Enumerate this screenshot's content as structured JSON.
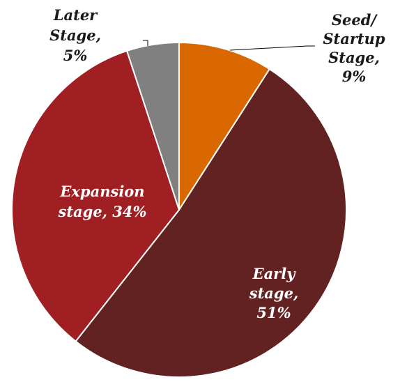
{
  "chart_data": {
    "type": "pie",
    "slices": [
      {
        "label": "Seed/ Startup Stage",
        "value": 9,
        "value_label": "9%",
        "color": "#D96800",
        "label_lines": [
          "Seed/",
          "Startup",
          "Stage,",
          "9%"
        ]
      },
      {
        "label": "Early stage",
        "value": 51,
        "value_label": "51%",
        "color": "#622222",
        "label_lines": [
          "Early",
          "stage,",
          "51%"
        ]
      },
      {
        "label": "Expansion stage",
        "value": 34,
        "value_label": "34%",
        "color": "#A01F23",
        "label_lines": [
          "Expansion",
          "stage, 34%"
        ]
      },
      {
        "label": "Later Stage",
        "value": 5,
        "value_label": "5%",
        "color": "#808080",
        "label_lines": [
          "Later",
          "Stage,",
          "5%"
        ]
      }
    ],
    "start_angle": "12 o'clock",
    "direction": "clockwise",
    "legend": "none",
    "data_labels": "category name and percentage"
  }
}
